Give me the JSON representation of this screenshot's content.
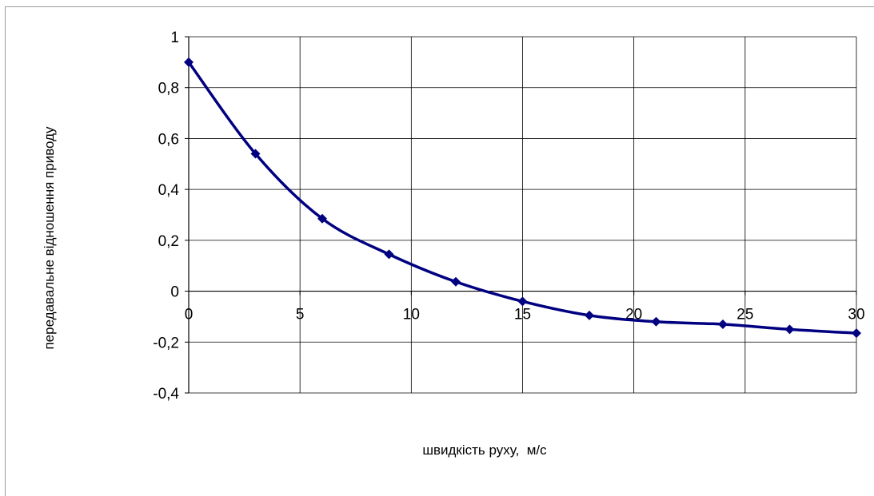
{
  "chart_data": {
    "type": "line",
    "title": "",
    "xlabel": "швидкість руху,  м/с",
    "ylabel": "передавальне відношення приводу",
    "x_ticks": [
      "0",
      "5",
      "10",
      "15",
      "20",
      "25",
      "30"
    ],
    "y_ticks": [
      "1",
      "0,8",
      "0,6",
      "0,4",
      "0,2",
      "0",
      "-0,2",
      "-0,4"
    ],
    "xlim": [
      0,
      30
    ],
    "ylim": [
      -0.4,
      1
    ],
    "grid": true,
    "legend": "none",
    "series": [
      {
        "color": "#000080",
        "marker": "diamond",
        "smooth": true,
        "x": [
          0,
          3,
          6,
          9,
          12,
          15,
          18,
          21,
          24,
          27,
          30
        ],
        "y": [
          0.9,
          0.54,
          0.285,
          0.145,
          0.037,
          -0.04,
          -0.095,
          -0.12,
          -0.13,
          -0.15,
          -0.165
        ]
      }
    ]
  }
}
